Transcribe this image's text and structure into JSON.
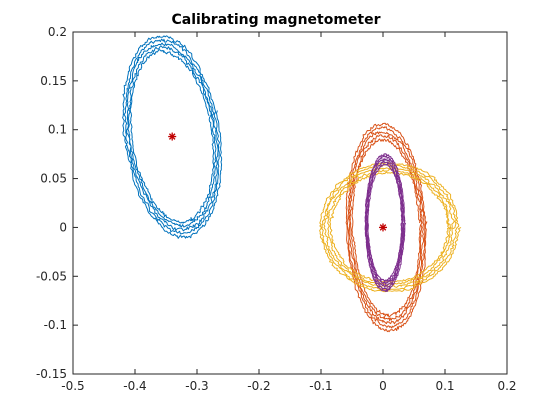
{
  "chart_data": {
    "type": "line",
    "title": "Calibrating magnetometer",
    "xlabel": "",
    "ylabel": "",
    "xlim": [
      -0.5,
      0.2
    ],
    "ylim": [
      -0.15,
      0.2
    ],
    "xticks": [
      -0.5,
      -0.4,
      -0.3,
      -0.2,
      -0.1,
      0,
      0.1,
      0.2
    ],
    "xtick_labels": [
      "-0.5",
      "-0.4",
      "-0.3",
      "-0.2",
      "-0.1",
      "0",
      "0.1",
      "0.2"
    ],
    "yticks": [
      -0.15,
      -0.1,
      -0.05,
      0,
      0.05,
      0.1,
      0.15,
      0.2
    ],
    "ytick_labels": [
      "-0.15",
      "-0.1",
      "-0.05",
      "0",
      "0.05",
      "0.1",
      "0.15",
      "0.2"
    ],
    "grid": false,
    "legend": "none",
    "series": [
      {
        "color": "#0072BD",
        "shape": "noisy-loop",
        "center": [
          -0.34,
          0.093
        ],
        "semi_axes": [
          0.07,
          0.1
        ],
        "tilt_deg": 20,
        "loops": 5
      },
      {
        "color": "#D95319",
        "shape": "noisy-loop",
        "center": [
          0.005,
          0.0
        ],
        "semi_axes": [
          0.06,
          0.1
        ],
        "tilt_deg": 5,
        "loops": 5
      },
      {
        "color": "#EDB120",
        "shape": "noisy-loop",
        "center": [
          0.01,
          0.0
        ],
        "semi_axes": [
          0.105,
          0.062
        ],
        "tilt_deg": 0,
        "loops": 5
      },
      {
        "color": "#7E2F8E",
        "shape": "noisy-loop",
        "center": [
          0.003,
          0.005
        ],
        "semi_axes": [
          0.03,
          0.066
        ],
        "tilt_deg": 0,
        "loops": 5
      }
    ],
    "markers": [
      {
        "symbol": "*",
        "color": "#C00000",
        "x": -0.34,
        "y": 0.093
      },
      {
        "symbol": "*",
        "color": "#C00000",
        "x": 0.0,
        "y": 0.0
      }
    ]
  }
}
